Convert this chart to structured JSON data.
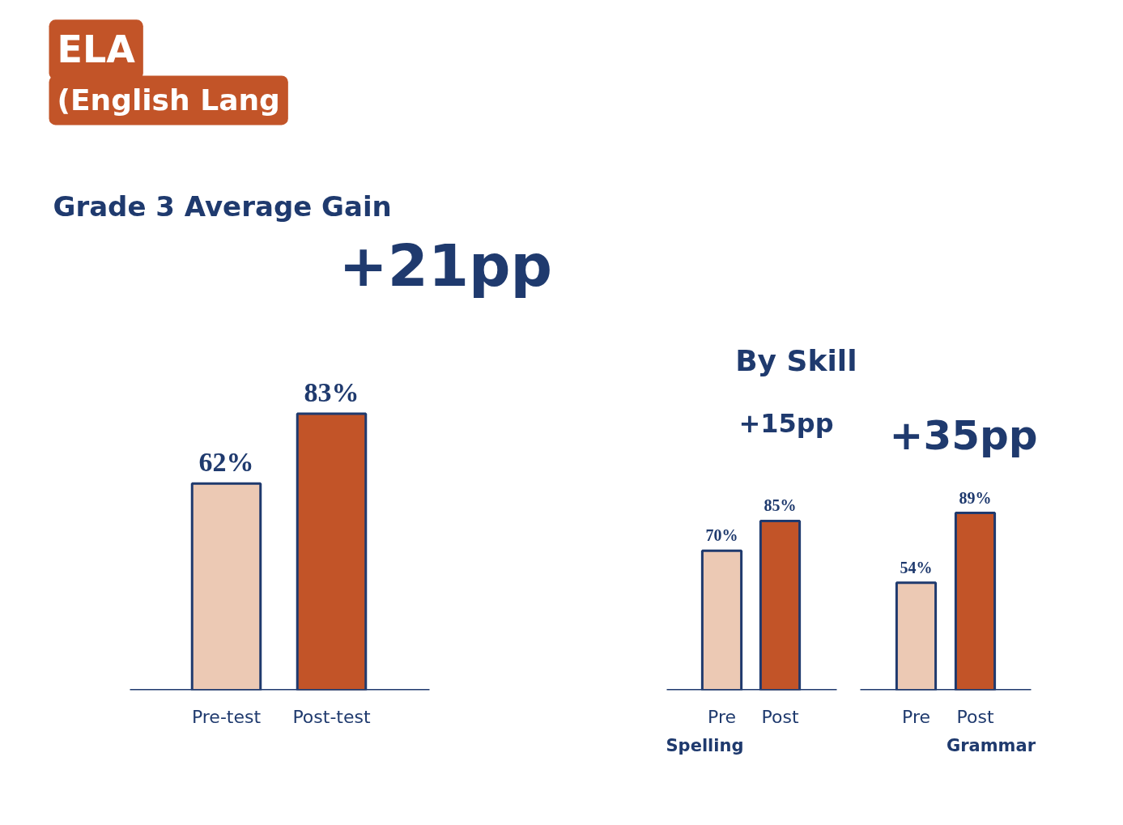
{
  "chart_data": [
    {
      "type": "bar",
      "title": "ELA",
      "subtitle": "(English Lang",
      "annotations": [
        "Grade 3 Average Gain",
        "+21pp"
      ],
      "categories": [
        "Pre-test",
        "Post-test"
      ],
      "values": [
        62,
        83
      ],
      "value_labels": [
        "62%",
        "83%"
      ],
      "colors": [
        "#ecc9b4",
        "#c25428"
      ]
    },
    {
      "type": "bar",
      "xlabel": "Spelling",
      "annotations": [
        "By Skill",
        "+15pp"
      ],
      "categories": [
        "Pre",
        "Post"
      ],
      "values": [
        70,
        85
      ],
      "value_labels": [
        "70%",
        "85%"
      ],
      "colors": [
        "#ecc9b4",
        "#c25428"
      ]
    },
    {
      "type": "bar",
      "xlabel": "Grammar",
      "annotations": [
        "+35pp"
      ],
      "categories": [
        "Pre",
        "Post"
      ],
      "values": [
        54,
        89
      ],
      "value_labels": [
        "54%",
        "89%"
      ],
      "colors": [
        "#ecc9b4",
        "#c25428"
      ]
    }
  ]
}
